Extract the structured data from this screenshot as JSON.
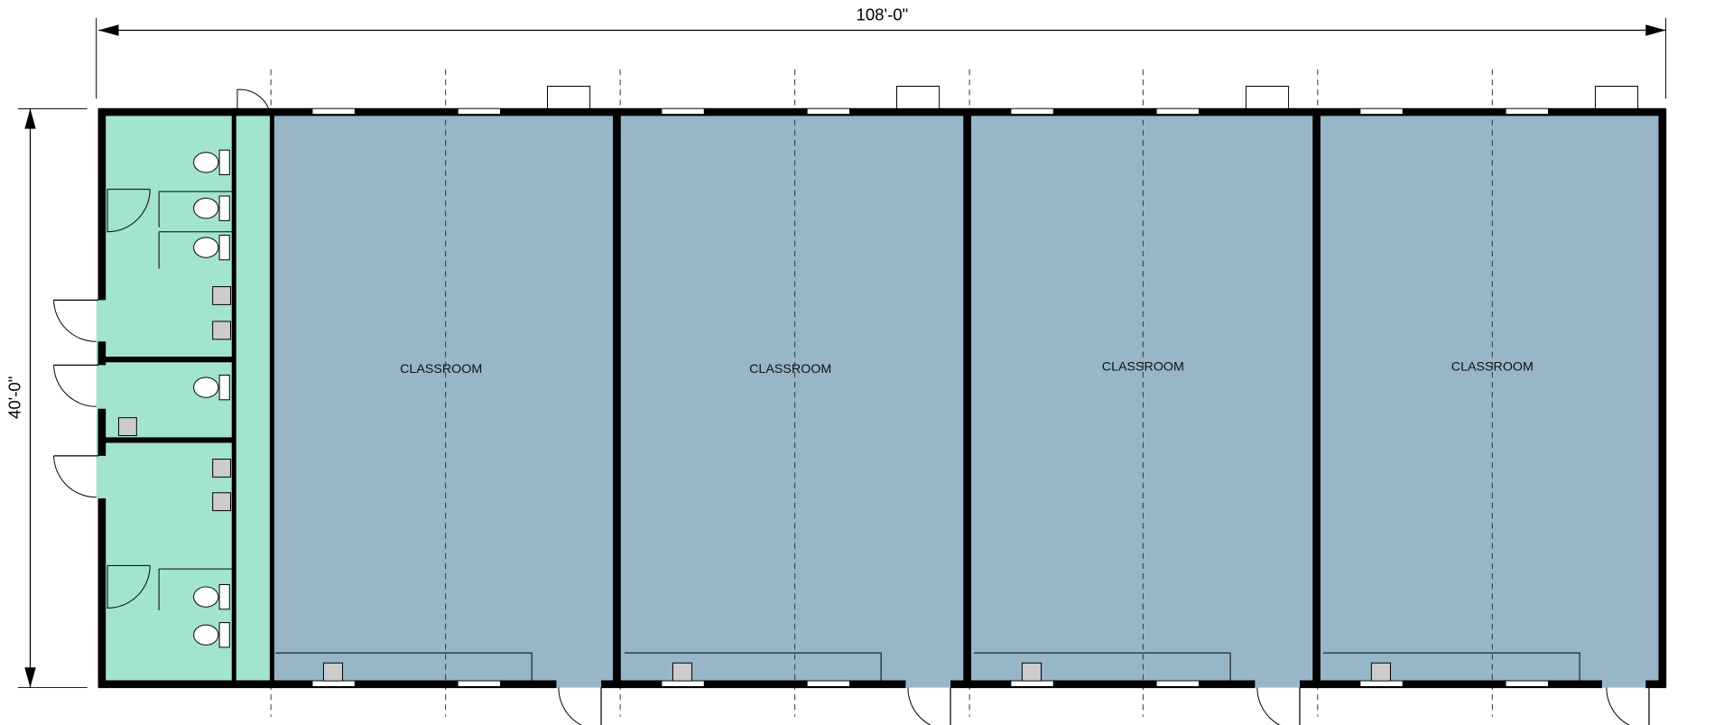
{
  "dimensions": {
    "width": "108'-0\"",
    "height": "40'-0\""
  },
  "rooms": [
    {
      "label": "CLASSROOM"
    },
    {
      "label": "CLASSROOM"
    },
    {
      "label": "CLASSROOM"
    },
    {
      "label": "CLASSROOM"
    }
  ]
}
